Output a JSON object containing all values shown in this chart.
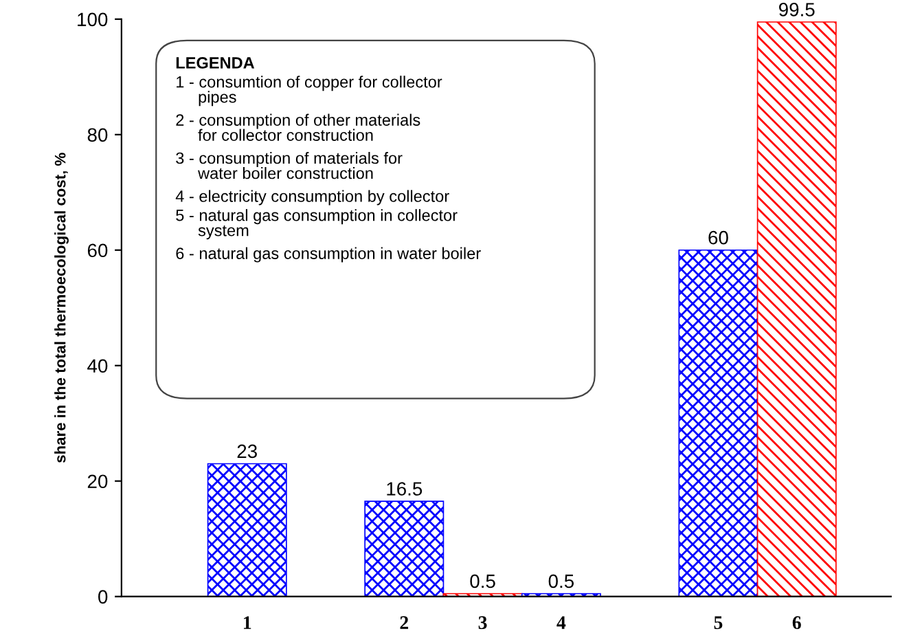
{
  "chart_data": {
    "type": "bar",
    "ylabel": "share in the total thermoecological cost, %",
    "categories": [
      "1",
      null,
      "2",
      "3",
      "4",
      null,
      "5",
      "6"
    ],
    "values": [
      23,
      null,
      16.5,
      0.5,
      0.5,
      null,
      60,
      99.5
    ],
    "colors": [
      "#0000ff",
      "#0000ff",
      "#0000ff",
      "#ff0000",
      "#0000ff",
      "#0000ff",
      "#0000ff",
      "#ff0000"
    ],
    "data_labels": true,
    "ylim": [
      0,
      100
    ],
    "yticks": [
      0,
      20,
      40,
      60,
      80,
      100
    ],
    "grid": false,
    "annotations": [
      "LEGENDA",
      "1 - consumtion of copper for collector\n     pipes",
      "2 - consumption of other materials\n     for collector construction",
      "3 - consumption of materials for\n     water boiler construction",
      "4 - electricity consumption by collector",
      "5 - natural gas consumption in collector\n     system",
      "6 - natural gas consumption in water boiler"
    ]
  }
}
